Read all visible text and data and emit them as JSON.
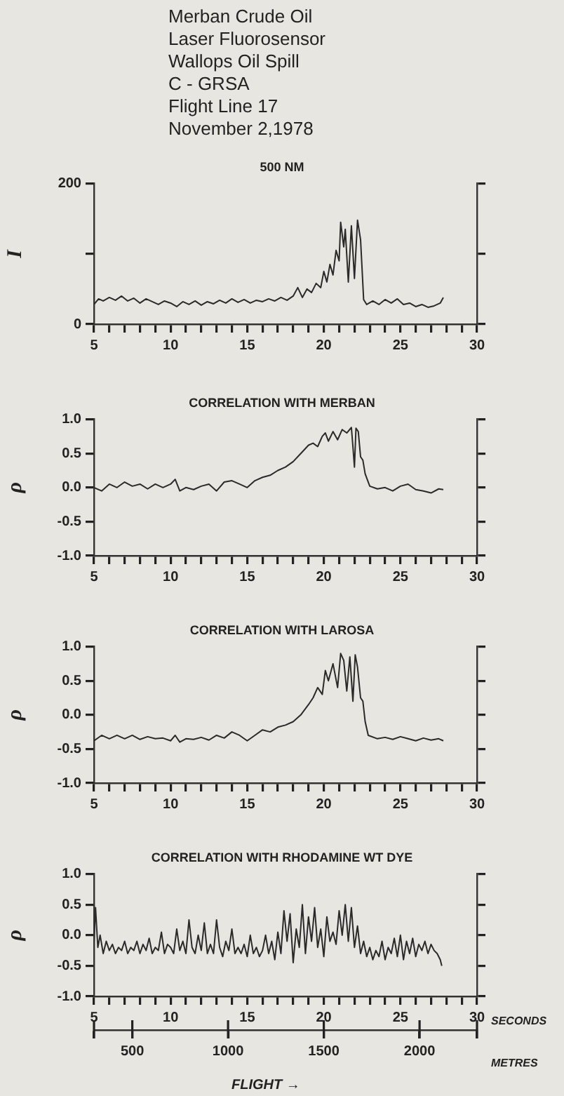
{
  "chart_data": [
    {
      "type": "line",
      "title": "500 NM",
      "ylabel": "I",
      "color": "#2a2a2a",
      "marker": "none",
      "grid": false,
      "annotations": [
        "Merban Crude Oil",
        "Laser Fluorosensor",
        "Wallops Oil Spill",
        "C - GRSA",
        "Flight Line 17",
        "November 2,1978"
      ],
      "x": [
        5,
        5.3,
        5.6,
        6,
        6.4,
        6.8,
        7.2,
        7.6,
        8,
        8.4,
        8.8,
        9.2,
        9.6,
        10,
        10.4,
        10.8,
        11.2,
        11.6,
        12,
        12.4,
        12.8,
        13.2,
        13.6,
        14,
        14.4,
        14.8,
        15.2,
        15.6,
        16,
        16.4,
        16.8,
        17.2,
        17.6,
        18,
        18.3,
        18.6,
        18.9,
        19.2,
        19.5,
        19.8,
        20,
        20.2,
        20.4,
        20.6,
        20.8,
        21,
        21.1,
        21.3,
        21.4,
        21.6,
        21.8,
        22,
        22.2,
        22.4,
        22.6,
        22.8,
        23.2,
        23.6,
        24,
        24.4,
        24.8,
        25.2,
        25.6,
        26,
        26.4,
        26.8,
        27.2,
        27.6,
        27.8
      ],
      "values": [
        28,
        36,
        33,
        38,
        34,
        40,
        33,
        37,
        30,
        36,
        32,
        28,
        33,
        30,
        25,
        32,
        28,
        33,
        27,
        32,
        29,
        34,
        30,
        36,
        31,
        35,
        30,
        34,
        32,
        36,
        33,
        38,
        34,
        40,
        52,
        38,
        50,
        45,
        58,
        52,
        75,
        60,
        85,
        70,
        105,
        90,
        145,
        110,
        135,
        60,
        140,
        65,
        148,
        120,
        35,
        28,
        33,
        28,
        35,
        30,
        36,
        28,
        30,
        25,
        28,
        24,
        26,
        30,
        38
      ],
      "xlim": [
        5,
        30
      ],
      "xticks": [
        5,
        {
          "value": 6,
          "label": null
        },
        {
          "value": 7,
          "label": null
        },
        {
          "value": 8,
          "label": null
        },
        {
          "value": 9,
          "label": null
        },
        10,
        {
          "value": 11,
          "label": null
        },
        {
          "value": 12,
          "label": null
        },
        {
          "value": 13,
          "label": null
        },
        {
          "value": 14,
          "label": null
        },
        15,
        {
          "value": 16,
          "label": null
        },
        {
          "value": 17,
          "label": null
        },
        {
          "value": 18,
          "label": null
        },
        {
          "value": 19,
          "label": null
        },
        20,
        {
          "value": 21,
          "label": null
        },
        {
          "value": 22,
          "label": null
        },
        {
          "value": 23,
          "label": null
        },
        {
          "value": 24,
          "label": null
        },
        25,
        {
          "value": 26,
          "label": null
        },
        {
          "value": 27,
          "label": null
        },
        {
          "value": 28,
          "label": null
        },
        {
          "value": 29,
          "label": null
        },
        30
      ],
      "ylim": [
        0,
        200
      ],
      "yticks": [
        0,
        {
          "value": 100,
          "label": null
        },
        200
      ]
    },
    {
      "type": "line",
      "title": "CORRELATION WITH MERBAN",
      "ylabel": "ρ",
      "color": "#2a2a2a",
      "marker": "none",
      "grid": false,
      "x": [
        5,
        5.5,
        6,
        6.5,
        7,
        7.5,
        8,
        8.5,
        9,
        9.5,
        10,
        10.3,
        10.6,
        11,
        11.5,
        12,
        12.5,
        13,
        13.5,
        14,
        14.5,
        15,
        15.5,
        16,
        16.5,
        17,
        17.5,
        18,
        18.5,
        19,
        19.3,
        19.6,
        19.9,
        20.1,
        20.3,
        20.6,
        20.9,
        21.2,
        21.5,
        21.8,
        21.9,
        22,
        22.1,
        22.25,
        22.4,
        22.55,
        22.7,
        23,
        23.5,
        24,
        24.5,
        25,
        25.5,
        26,
        26.5,
        27,
        27.5,
        27.8
      ],
      "values": [
        0.0,
        -0.05,
        0.05,
        0.0,
        0.08,
        0.02,
        0.05,
        -0.02,
        0.05,
        0.0,
        0.05,
        0.12,
        -0.05,
        0.0,
        -0.03,
        0.02,
        0.05,
        -0.05,
        0.08,
        0.1,
        0.05,
        0.0,
        0.1,
        0.15,
        0.18,
        0.25,
        0.3,
        0.38,
        0.5,
        0.62,
        0.65,
        0.6,
        0.75,
        0.8,
        0.68,
        0.82,
        0.7,
        0.85,
        0.8,
        0.88,
        0.6,
        0.3,
        0.87,
        0.82,
        0.45,
        0.4,
        0.2,
        0.02,
        -0.02,
        0.0,
        -0.05,
        0.02,
        0.05,
        -0.03,
        -0.05,
        -0.08,
        -0.02,
        -0.03
      ],
      "xlim": [
        5,
        30
      ],
      "xticks": [
        5,
        {
          "value": 6,
          "label": null
        },
        {
          "value": 7,
          "label": null
        },
        {
          "value": 8,
          "label": null
        },
        {
          "value": 9,
          "label": null
        },
        10,
        {
          "value": 11,
          "label": null
        },
        {
          "value": 12,
          "label": null
        },
        {
          "value": 13,
          "label": null
        },
        {
          "value": 14,
          "label": null
        },
        15,
        {
          "value": 16,
          "label": null
        },
        {
          "value": 17,
          "label": null
        },
        {
          "value": 18,
          "label": null
        },
        {
          "value": 19,
          "label": null
        },
        20,
        {
          "value": 21,
          "label": null
        },
        {
          "value": 22,
          "label": null
        },
        {
          "value": 23,
          "label": null
        },
        {
          "value": 24,
          "label": null
        },
        25,
        {
          "value": 26,
          "label": null
        },
        {
          "value": 27,
          "label": null
        },
        {
          "value": 28,
          "label": null
        },
        {
          "value": 29,
          "label": null
        },
        30
      ],
      "ylim": [
        -1,
        1
      ],
      "yticks": [
        {
          "value": -1,
          "label": "-1.0"
        },
        {
          "value": -0.5,
          "label": "-0.5"
        },
        {
          "value": 0,
          "label": "0.0"
        },
        {
          "value": 0.5,
          "label": "0.5"
        },
        {
          "value": 1,
          "label": "1.0"
        }
      ]
    },
    {
      "type": "line",
      "title": "CORRELATION WITH LAROSA",
      "ylabel": "ρ",
      "color": "#2a2a2a",
      "marker": "none",
      "grid": false,
      "x": [
        5,
        5.5,
        6,
        6.5,
        7,
        7.5,
        8,
        8.5,
        9,
        9.5,
        10,
        10.3,
        10.6,
        11,
        11.5,
        12,
        12.5,
        13,
        13.5,
        14,
        14.5,
        15,
        15.5,
        16,
        16.5,
        17,
        17.5,
        18,
        18.5,
        19,
        19.3,
        19.6,
        19.9,
        20.1,
        20.3,
        20.6,
        20.9,
        21.1,
        21.3,
        21.5,
        21.7,
        21.9,
        22.05,
        22.2,
        22.4,
        22.55,
        22.7,
        22.9,
        23.5,
        24,
        24.5,
        25,
        25.5,
        26,
        26.5,
        27,
        27.5,
        27.8
      ],
      "values": [
        -0.38,
        -0.3,
        -0.35,
        -0.3,
        -0.35,
        -0.3,
        -0.36,
        -0.32,
        -0.35,
        -0.34,
        -0.38,
        -0.3,
        -0.4,
        -0.35,
        -0.36,
        -0.33,
        -0.37,
        -0.3,
        -0.34,
        -0.25,
        -0.3,
        -0.38,
        -0.3,
        -0.22,
        -0.25,
        -0.18,
        -0.15,
        -0.1,
        0.0,
        0.15,
        0.25,
        0.4,
        0.3,
        0.65,
        0.5,
        0.75,
        0.4,
        0.9,
        0.8,
        0.35,
        0.85,
        0.2,
        0.88,
        0.7,
        0.25,
        0.2,
        -0.1,
        -0.3,
        -0.35,
        -0.33,
        -0.36,
        -0.32,
        -0.35,
        -0.38,
        -0.34,
        -0.37,
        -0.35,
        -0.38
      ],
      "xlim": [
        5,
        30
      ],
      "xticks": [
        5,
        {
          "value": 6,
          "label": null
        },
        {
          "value": 7,
          "label": null
        },
        {
          "value": 8,
          "label": null
        },
        {
          "value": 9,
          "label": null
        },
        10,
        {
          "value": 11,
          "label": null
        },
        {
          "value": 12,
          "label": null
        },
        {
          "value": 13,
          "label": null
        },
        {
          "value": 14,
          "label": null
        },
        15,
        {
          "value": 16,
          "label": null
        },
        {
          "value": 17,
          "label": null
        },
        {
          "value": 18,
          "label": null
        },
        {
          "value": 19,
          "label": null
        },
        20,
        {
          "value": 21,
          "label": null
        },
        {
          "value": 22,
          "label": null
        },
        {
          "value": 23,
          "label": null
        },
        {
          "value": 24,
          "label": null
        },
        25,
        {
          "value": 26,
          "label": null
        },
        {
          "value": 27,
          "label": null
        },
        {
          "value": 28,
          "label": null
        },
        {
          "value": 29,
          "label": null
        },
        30
      ],
      "ylim": [
        -1,
        1
      ],
      "yticks": [
        {
          "value": -1,
          "label": "-1.0"
        },
        {
          "value": -0.5,
          "label": "-0.5"
        },
        {
          "value": 0,
          "label": "0.0"
        },
        {
          "value": 0.5,
          "label": "0.5"
        },
        {
          "value": 1,
          "label": "1.0"
        }
      ]
    },
    {
      "type": "line",
      "title": "CORRELATION WITH RHODAMINE WT DYE",
      "ylabel": "ρ",
      "xlabel": "SECONDS",
      "x2label": "METRES",
      "color": "#2a2a2a",
      "marker": "none",
      "grid": false,
      "annotations": [
        "FLIGHT →"
      ],
      "x": [
        5,
        5.1,
        5.25,
        5.4,
        5.6,
        5.8,
        6,
        6.2,
        6.4,
        6.6,
        6.8,
        7,
        7.2,
        7.4,
        7.6,
        7.8,
        8,
        8.2,
        8.4,
        8.6,
        8.8,
        9,
        9.2,
        9.4,
        9.6,
        9.8,
        10,
        10.2,
        10.4,
        10.6,
        10.8,
        11,
        11.2,
        11.4,
        11.6,
        11.8,
        12,
        12.2,
        12.4,
        12.6,
        12.8,
        13,
        13.2,
        13.4,
        13.6,
        13.8,
        14,
        14.2,
        14.4,
        14.6,
        14.8,
        15,
        15.2,
        15.4,
        15.6,
        15.8,
        16,
        16.2,
        16.4,
        16.6,
        16.8,
        17,
        17.2,
        17.4,
        17.6,
        17.8,
        18,
        18.2,
        18.4,
        18.6,
        18.8,
        19,
        19.2,
        19.4,
        19.6,
        19.8,
        20,
        20.2,
        20.4,
        20.6,
        20.8,
        21,
        21.2,
        21.4,
        21.6,
        21.8,
        22,
        22.2,
        22.4,
        22.6,
        22.8,
        23,
        23.2,
        23.4,
        23.6,
        23.8,
        24,
        24.2,
        24.4,
        24.6,
        24.8,
        25,
        25.2,
        25.4,
        25.6,
        25.8,
        26,
        26.2,
        26.4,
        26.6,
        26.8,
        27,
        27.2,
        27.4,
        27.6,
        27.7
      ],
      "values": [
        -0.1,
        0.45,
        -0.2,
        0.0,
        -0.3,
        -0.1,
        -0.25,
        -0.15,
        -0.3,
        -0.2,
        -0.25,
        -0.1,
        -0.3,
        -0.2,
        -0.25,
        -0.1,
        -0.3,
        -0.15,
        -0.25,
        -0.05,
        -0.3,
        -0.2,
        -0.25,
        0.05,
        -0.3,
        -0.15,
        -0.2,
        -0.3,
        0.1,
        -0.25,
        -0.1,
        -0.3,
        0.25,
        -0.2,
        -0.3,
        0.0,
        -0.25,
        0.2,
        -0.3,
        -0.15,
        -0.3,
        0.25,
        -0.2,
        -0.35,
        -0.1,
        -0.25,
        0.1,
        -0.3,
        -0.2,
        -0.3,
        -0.15,
        -0.35,
        0.0,
        -0.3,
        -0.2,
        -0.35,
        -0.25,
        0.0,
        -0.3,
        -0.1,
        -0.4,
        0.05,
        -0.3,
        0.4,
        -0.1,
        0.35,
        -0.45,
        0.1,
        -0.2,
        0.5,
        -0.3,
        0.3,
        -0.1,
        0.45,
        -0.2,
        0.1,
        -0.35,
        0.3,
        -0.1,
        0.05,
        -0.15,
        0.4,
        0.0,
        0.5,
        -0.1,
        0.45,
        -0.2,
        0.15,
        -0.3,
        -0.1,
        -0.35,
        -0.2,
        -0.4,
        -0.25,
        -0.35,
        -0.1,
        -0.4,
        -0.2,
        -0.3,
        -0.05,
        -0.35,
        0.0,
        -0.4,
        -0.1,
        -0.3,
        -0.05,
        -0.35,
        -0.15,
        -0.25,
        -0.1,
        -0.3,
        -0.15,
        -0.25,
        -0.3,
        -0.4,
        -0.5
      ],
      "xlim": [
        5,
        30
      ],
      "xticks": [
        5,
        {
          "value": 6,
          "label": null
        },
        {
          "value": 7,
          "label": null
        },
        {
          "value": 8,
          "label": null
        },
        {
          "value": 9,
          "label": null
        },
        10,
        {
          "value": 11,
          "label": null
        },
        {
          "value": 12,
          "label": null
        },
        {
          "value": 13,
          "label": null
        },
        {
          "value": 14,
          "label": null
        },
        15,
        {
          "value": 16,
          "label": null
        },
        {
          "value": 17,
          "label": null
        },
        {
          "value": 18,
          "label": null
        },
        {
          "value": 19,
          "label": null
        },
        20,
        {
          "value": 21,
          "label": null
        },
        {
          "value": 22,
          "label": null
        },
        {
          "value": 23,
          "label": null
        },
        {
          "value": 24,
          "label": null
        },
        25,
        {
          "value": 26,
          "label": null
        },
        {
          "value": 27,
          "label": null
        },
        {
          "value": 28,
          "label": null
        },
        {
          "value": 29,
          "label": null
        },
        30
      ],
      "x2lim": [
        300,
        2300
      ],
      "x2ticks": [
        {
          "value": 300,
          "label": null
        },
        500,
        1000,
        1500,
        2000,
        {
          "value": 2300,
          "label": null
        }
      ],
      "ylim": [
        -1,
        1
      ],
      "yticks": [
        {
          "value": -1,
          "label": "-1.0"
        },
        {
          "value": -0.5,
          "label": "-0.5"
        },
        {
          "value": 0,
          "label": "0.0"
        },
        {
          "value": 0.5,
          "label": "0.5"
        },
        {
          "value": 1,
          "label": "1.0"
        }
      ]
    }
  ]
}
